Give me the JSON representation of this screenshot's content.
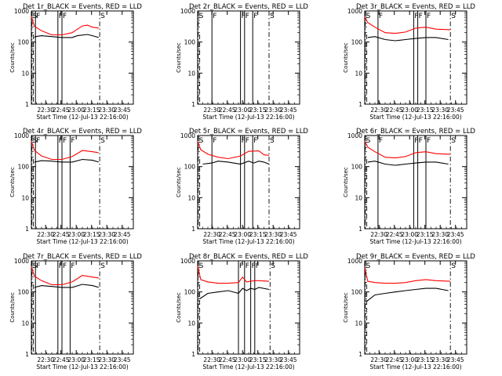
{
  "chart_data": [
    {
      "type": "line",
      "title": "Det 1r_BLACK = Events, RED = LLD",
      "xlabel": "Start Time (12-Jul-13 22:16:00)",
      "ylabel": "Counts/sec",
      "yscale": "log",
      "ylim": [
        1,
        1000
      ],
      "xlim_minutes": [
        0,
        100
      ],
      "xticks": [
        "22:30",
        "22:45",
        "23:00",
        "23:15",
        "23:30",
        "23:45"
      ],
      "yticks": [
        "1",
        "10",
        "100",
        "1000"
      ],
      "markers": [
        {
          "label": "S",
          "t": 0.5
        },
        {
          "label": "F",
          "t": 4
        },
        {
          "label": "F",
          "t": 26
        },
        {
          "label": "F",
          "t": 30
        },
        {
          "label": "S",
          "t": 67
        }
      ],
      "series": [
        {
          "name": "Events",
          "color": "#000000",
          "points": [
            [
              3,
              140
            ],
            [
              4,
              150
            ],
            [
              10,
              160
            ],
            [
              20,
              150
            ],
            [
              30,
              140
            ],
            [
              40,
              140
            ],
            [
              45,
              160
            ],
            [
              55,
              175
            ],
            [
              60,
              160
            ],
            [
              66,
              140
            ]
          ]
        },
        {
          "name": "LLD",
          "color": "#ff0000",
          "points": [
            [
              0,
              650
            ],
            [
              3,
              320
            ],
            [
              10,
              230
            ],
            [
              20,
              170
            ],
            [
              30,
              170
            ],
            [
              40,
              200
            ],
            [
              50,
              330
            ],
            [
              55,
              350
            ],
            [
              60,
              300
            ],
            [
              66,
              280
            ]
          ]
        }
      ]
    },
    {
      "type": "line",
      "title": "Det 2r_BLACK = Events, RED = LLD",
      "xlabel": "Start Time (12-Jul-13 22:16:00)",
      "ylabel": "Counts/sec",
      "yscale": "log",
      "ylim": [
        1,
        1000
      ],
      "xlim_minutes": [
        0,
        100
      ],
      "xticks": [
        "22:30",
        "22:45",
        "23:00",
        "23:15",
        "23:30",
        "23:45"
      ],
      "yticks": [
        "1",
        "10",
        "100",
        "1000"
      ],
      "markers": [
        {
          "label": "S",
          "t": 0.5
        },
        {
          "label": "F",
          "t": 14
        },
        {
          "label": "F",
          "t": 42
        },
        {
          "label": "F",
          "t": 46
        },
        {
          "label": "F",
          "t": 54
        },
        {
          "label": "S",
          "t": 70
        }
      ],
      "series": []
    },
    {
      "type": "line",
      "title": "Det 3r_BLACK = Events, RED = LLD",
      "xlabel": "Start Time (12-Jul-13 22:16:00)",
      "ylabel": "Counts/sec",
      "yscale": "log",
      "ylim": [
        1,
        1000
      ],
      "xlim_minutes": [
        0,
        100
      ],
      "xticks": [
        "22:30",
        "22:45",
        "23:00",
        "23:15",
        "23:30",
        "23:45"
      ],
      "yticks": [
        "1",
        "10",
        "100",
        "1000"
      ],
      "markers": [
        {
          "label": "S",
          "t": 0.5
        },
        {
          "label": "F",
          "t": 13
        },
        {
          "label": "F",
          "t": 48
        },
        {
          "label": "F",
          "t": 52
        },
        {
          "label": "F",
          "t": 60
        },
        {
          "label": "S",
          "t": 84
        }
      ],
      "series": [
        {
          "name": "Events",
          "color": "#000000",
          "points": [
            [
              3,
              140
            ],
            [
              10,
              150
            ],
            [
              20,
              120
            ],
            [
              30,
              110
            ],
            [
              40,
              120
            ],
            [
              50,
              130
            ],
            [
              60,
              140
            ],
            [
              70,
              140
            ],
            [
              82,
              120
            ]
          ]
        },
        {
          "name": "LLD",
          "color": "#ff0000",
          "points": [
            [
              0,
              650
            ],
            [
              3,
              420
            ],
            [
              10,
              300
            ],
            [
              20,
              200
            ],
            [
              30,
              190
            ],
            [
              40,
              210
            ],
            [
              50,
              280
            ],
            [
              60,
              300
            ],
            [
              70,
              260
            ],
            [
              84,
              250
            ]
          ]
        }
      ]
    },
    {
      "type": "line",
      "title": "Det 4r_BLACK = Events, RED = LLD",
      "xlabel": "Start Time (12-Jul-13 22:16:00)",
      "ylabel": "Counts/sec",
      "yscale": "log",
      "ylim": [
        1,
        1000
      ],
      "xlim_minutes": [
        0,
        100
      ],
      "xticks": [
        "22:30",
        "22:45",
        "23:00",
        "23:15",
        "23:30",
        "23:45"
      ],
      "yticks": [
        "1",
        "10",
        "100",
        "1000"
      ],
      "markers": [
        {
          "label": "S",
          "t": 0.5
        },
        {
          "label": "F",
          "t": 4
        },
        {
          "label": "F",
          "t": 26
        },
        {
          "label": "F",
          "t": 30
        },
        {
          "label": "F",
          "t": 38
        },
        {
          "label": "S",
          "t": 67
        }
      ],
      "series": [
        {
          "name": "Events",
          "color": "#000000",
          "points": [
            [
              3,
              140
            ],
            [
              10,
              155
            ],
            [
              20,
              150
            ],
            [
              30,
              140
            ],
            [
              40,
              140
            ],
            [
              50,
              170
            ],
            [
              60,
              160
            ],
            [
              66,
              140
            ]
          ]
        },
        {
          "name": "LLD",
          "color": "#ff0000",
          "points": [
            [
              0,
              650
            ],
            [
              3,
              330
            ],
            [
              10,
              220
            ],
            [
              20,
              170
            ],
            [
              30,
              170
            ],
            [
              40,
              210
            ],
            [
              50,
              330
            ],
            [
              60,
              300
            ],
            [
              66,
              280
            ]
          ]
        }
      ]
    },
    {
      "type": "line",
      "title": "Det 5r_BLACK = Events, RED = LLD",
      "xlabel": "Start Time (12-Jul-13 22:16:00)",
      "ylabel": "Counts/sec",
      "yscale": "log",
      "ylim": [
        1,
        1000
      ],
      "xlim_minutes": [
        0,
        100
      ],
      "xticks": [
        "22:30",
        "22:45",
        "23:00",
        "23:15",
        "23:30",
        "23:45"
      ],
      "yticks": [
        "1",
        "10",
        "100",
        "1000"
      ],
      "markers": [
        {
          "label": "S",
          "t": 0.5
        },
        {
          "label": "F",
          "t": 14
        },
        {
          "label": "F",
          "t": 42
        },
        {
          "label": "F",
          "t": 46
        },
        {
          "label": "F",
          "t": 54
        },
        {
          "label": "S",
          "t": 70
        }
      ],
      "series": [
        {
          "name": "Events",
          "color": "#000000",
          "points": [
            [
              5,
              120
            ],
            [
              14,
              130
            ],
            [
              20,
              150
            ],
            [
              30,
              140
            ],
            [
              42,
              120
            ],
            [
              50,
              150
            ],
            [
              55,
              130
            ],
            [
              60,
              150
            ],
            [
              65,
              140
            ],
            [
              70,
              120
            ]
          ]
        },
        {
          "name": "LLD",
          "color": "#ff0000",
          "points": [
            [
              0,
              650
            ],
            [
              3,
              350
            ],
            [
              10,
              250
            ],
            [
              20,
              200
            ],
            [
              30,
              180
            ],
            [
              42,
              220
            ],
            [
              50,
              310
            ],
            [
              60,
              320
            ],
            [
              65,
              240
            ],
            [
              70,
              230
            ]
          ]
        }
      ]
    },
    {
      "type": "line",
      "title": "Det 6r_BLACK = Events, RED = LLD",
      "xlabel": "Start Time (12-Jul-13 22:16:00)",
      "ylabel": "Counts/sec",
      "yscale": "log",
      "ylim": [
        1,
        1000
      ],
      "xlim_minutes": [
        0,
        100
      ],
      "xticks": [
        "22:30",
        "22:45",
        "23:00",
        "23:15",
        "23:30",
        "23:45"
      ],
      "yticks": [
        "1",
        "10",
        "100",
        "1000"
      ],
      "markers": [
        {
          "label": "S",
          "t": 0.5
        },
        {
          "label": "F",
          "t": 13
        },
        {
          "label": "F",
          "t": 48
        },
        {
          "label": "F",
          "t": 52
        },
        {
          "label": "F",
          "t": 60
        },
        {
          "label": "S",
          "t": 84
        }
      ],
      "series": [
        {
          "name": "Events",
          "color": "#000000",
          "points": [
            [
              3,
              140
            ],
            [
              10,
              150
            ],
            [
              20,
              120
            ],
            [
              30,
              110
            ],
            [
              40,
              120
            ],
            [
              50,
              130
            ],
            [
              60,
              140
            ],
            [
              70,
              140
            ],
            [
              82,
              120
            ]
          ]
        },
        {
          "name": "LLD",
          "color": "#ff0000",
          "points": [
            [
              0,
              650
            ],
            [
              3,
              420
            ],
            [
              10,
              300
            ],
            [
              20,
              200
            ],
            [
              30,
              190
            ],
            [
              40,
              210
            ],
            [
              50,
              280
            ],
            [
              60,
              300
            ],
            [
              70,
              260
            ],
            [
              84,
              250
            ]
          ]
        }
      ]
    },
    {
      "type": "line",
      "title": "Det 7r_BLACK = Events, RED = LLD",
      "xlabel": "Start Time (12-Jul-13 22:16:00)",
      "ylabel": "Counts/sec",
      "yscale": "log",
      "ylim": [
        1,
        1000
      ],
      "xlim_minutes": [
        0,
        100
      ],
      "xticks": [
        "22:30",
        "22:45",
        "23:00",
        "23:15",
        "23:30",
        "23:45"
      ],
      "yticks": [
        "1",
        "10",
        "100",
        "1000"
      ],
      "markers": [
        {
          "label": "S",
          "t": 0.5
        },
        {
          "label": "F",
          "t": 4
        },
        {
          "label": "F",
          "t": 26
        },
        {
          "label": "F",
          "t": 30
        },
        {
          "label": "F",
          "t": 38
        },
        {
          "label": "S",
          "t": 67
        }
      ],
      "series": [
        {
          "name": "Events",
          "color": "#000000",
          "points": [
            [
              3,
              140
            ],
            [
              10,
              160
            ],
            [
              20,
              150
            ],
            [
              30,
              140
            ],
            [
              40,
              140
            ],
            [
              50,
              175
            ],
            [
              60,
              160
            ],
            [
              66,
              140
            ]
          ]
        },
        {
          "name": "LLD",
          "color": "#ff0000",
          "points": [
            [
              0,
              650
            ],
            [
              3,
              320
            ],
            [
              10,
              230
            ],
            [
              20,
              170
            ],
            [
              30,
              170
            ],
            [
              40,
              210
            ],
            [
              50,
              340
            ],
            [
              60,
              300
            ],
            [
              66,
              280
            ]
          ]
        }
      ]
    },
    {
      "type": "line",
      "title": "Det 8r_BLACK = Events, RED = LLD",
      "xlabel": "Start Time (12-Jul-13 22:16:00)",
      "ylabel": "Counts/sec",
      "yscale": "log",
      "ylim": [
        1,
        1000
      ],
      "xlim_minutes": [
        0,
        100
      ],
      "xticks": [
        "22:30",
        "22:45",
        "23:00",
        "23:15",
        "23:30",
        "23:45"
      ],
      "yticks": [
        "1",
        "10",
        "100",
        "1000"
      ],
      "markers": [
        {
          "label": "S",
          "t": 0.5
        },
        {
          "label": "F",
          "t": 40
        },
        {
          "label": "F",
          "t": 46
        },
        {
          "label": "F",
          "t": 52
        },
        {
          "label": "F",
          "t": 56
        },
        {
          "label": "S",
          "t": 71
        }
      ],
      "series": [
        {
          "name": "Events",
          "color": "#000000",
          "points": [
            [
              2,
              60
            ],
            [
              10,
              90
            ],
            [
              20,
              100
            ],
            [
              30,
              110
            ],
            [
              40,
              90
            ],
            [
              44,
              130
            ],
            [
              48,
              110
            ],
            [
              52,
              130
            ],
            [
              56,
              120
            ],
            [
              60,
              140
            ],
            [
              70,
              120
            ]
          ]
        },
        {
          "name": "LLD",
          "color": "#ff0000",
          "points": [
            [
              0,
              700
            ],
            [
              3,
              250
            ],
            [
              10,
              210
            ],
            [
              20,
              190
            ],
            [
              30,
              190
            ],
            [
              40,
              200
            ],
            [
              44,
              300
            ],
            [
              48,
              210
            ],
            [
              52,
              220
            ],
            [
              56,
              230
            ],
            [
              60,
              230
            ],
            [
              70,
              220
            ]
          ]
        }
      ]
    },
    {
      "type": "line",
      "title": "Det 9r_BLACK = Events, RED = LLD",
      "xlabel": "Start Time (12-Jul-13 22:16:00)",
      "ylabel": "Counts/sec",
      "yscale": "log",
      "ylim": [
        1,
        1000
      ],
      "xlim_minutes": [
        0,
        100
      ],
      "xticks": [
        "22:30",
        "22:45",
        "23:00",
        "23:15",
        "23:30",
        "23:45"
      ],
      "yticks": [
        "1",
        "10",
        "100",
        "1000"
      ],
      "markers": [
        {
          "label": "S",
          "t": 0.5
        },
        {
          "label": "S",
          "t": 84
        }
      ],
      "series": [
        {
          "name": "Events",
          "color": "#000000",
          "points": [
            [
              2,
              50
            ],
            [
              10,
              80
            ],
            [
              20,
              90
            ],
            [
              30,
              100
            ],
            [
              40,
              110
            ],
            [
              50,
              120
            ],
            [
              60,
              130
            ],
            [
              70,
              130
            ],
            [
              82,
              110
            ]
          ]
        },
        {
          "name": "LLD",
          "color": "#ff0000",
          "points": [
            [
              0,
              600
            ],
            [
              3,
              220
            ],
            [
              10,
              200
            ],
            [
              20,
              190
            ],
            [
              30,
              190
            ],
            [
              40,
              200
            ],
            [
              50,
              230
            ],
            [
              60,
              250
            ],
            [
              70,
              230
            ],
            [
              84,
              220
            ]
          ]
        }
      ]
    }
  ]
}
